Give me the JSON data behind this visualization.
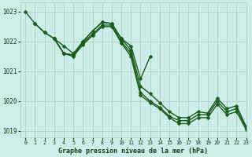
{
  "background_color": "#cceee8",
  "grid_color": "#b0c8c4",
  "line_color": "#1a5c1a",
  "title": "Graphe pression niveau de la mer (hPa)",
  "xlim": [
    -0.5,
    23
  ],
  "ylim": [
    1018.8,
    1023.3
  ],
  "yticks": [
    1019,
    1020,
    1021,
    1022,
    1023
  ],
  "xticks": [
    0,
    1,
    2,
    3,
    4,
    5,
    6,
    7,
    8,
    9,
    10,
    11,
    12,
    13,
    14,
    15,
    16,
    17,
    18,
    19,
    20,
    21,
    22,
    23
  ],
  "series": [
    [
      1023.0,
      1022.6,
      null,
      null,
      1021.85,
      1021.6,
      null,
      null,
      null,
      1022.6,
      1022.1,
      null,
      null,
      null,
      null,
      null,
      null,
      null,
      null,
      null,
      null,
      null,
      null,
      null
    ],
    [
      null,
      1022.6,
      1022.3,
      1022.1,
      1021.6,
      1021.55,
      1022.0,
      1022.35,
      1022.65,
      1022.6,
      1022.1,
      1021.85,
      1020.75,
      1021.5,
      null,
      null,
      null,
      null,
      null,
      null,
      null,
      null,
      null,
      null
    ],
    [
      null,
      null,
      null,
      null,
      null,
      null,
      null,
      null,
      null,
      null,
      null,
      null,
      1020.5,
      1020.25,
      1019.95,
      1019.8,
      1019.55,
      1019.55,
      1019.75,
      1019.6,
      1020.1,
      1019.85,
      1019.95,
      1019.2
    ],
    [
      null,
      null,
      null,
      null,
      null,
      null,
      null,
      null,
      null,
      null,
      null,
      null,
      1020.75,
      1020.0,
      1019.8,
      1019.65,
      1019.45,
      1019.45,
      1019.6,
      1019.6,
      1020.1,
      1019.75,
      1019.85,
      1019.15
    ]
  ],
  "series_full": [
    [
      1023.0,
      1022.6,
      1022.3,
      1022.1,
      1021.85,
      1021.6,
      1022.0,
      1022.35,
      1022.65,
      1022.6,
      1022.1,
      1021.85,
      1020.75,
      1021.5,
      1019.95,
      1019.8,
      1019.55,
      1019.55,
      1019.75,
      1019.6,
      1020.1,
      1019.85,
      1019.95,
      1019.2
    ],
    [
      null,
      1022.6,
      1022.3,
      1022.1,
      1021.6,
      1021.55,
      1022.0,
      1022.35,
      1022.65,
      1022.6,
      1022.1,
      1021.7,
      1020.5,
      1020.25,
      1019.95,
      1019.65,
      1019.45,
      1019.45,
      1019.65,
      1019.6,
      1020.1,
      1019.75,
      1019.85,
      1019.15
    ],
    [
      null,
      null,
      null,
      null,
      null,
      null,
      null,
      null,
      null,
      null,
      null,
      null,
      1020.75,
      1020.0,
      1019.8,
      1019.55,
      1019.35,
      1019.35,
      1019.55,
      1019.55,
      1020.0,
      1019.65,
      1019.75,
      1019.1
    ],
    [
      null,
      null,
      null,
      1022.1,
      1021.6,
      1021.55,
      1021.95,
      1022.25,
      1022.55,
      1022.6,
      1022.0,
      1021.6,
      1020.3,
      1020.0,
      1019.8,
      1019.5,
      1019.35,
      1019.35,
      1019.55,
      1019.55,
      1020.0,
      1019.65,
      1019.75,
      1019.1
    ]
  ],
  "marker": "D",
  "markersize": 2.5,
  "linewidth": 1.0
}
